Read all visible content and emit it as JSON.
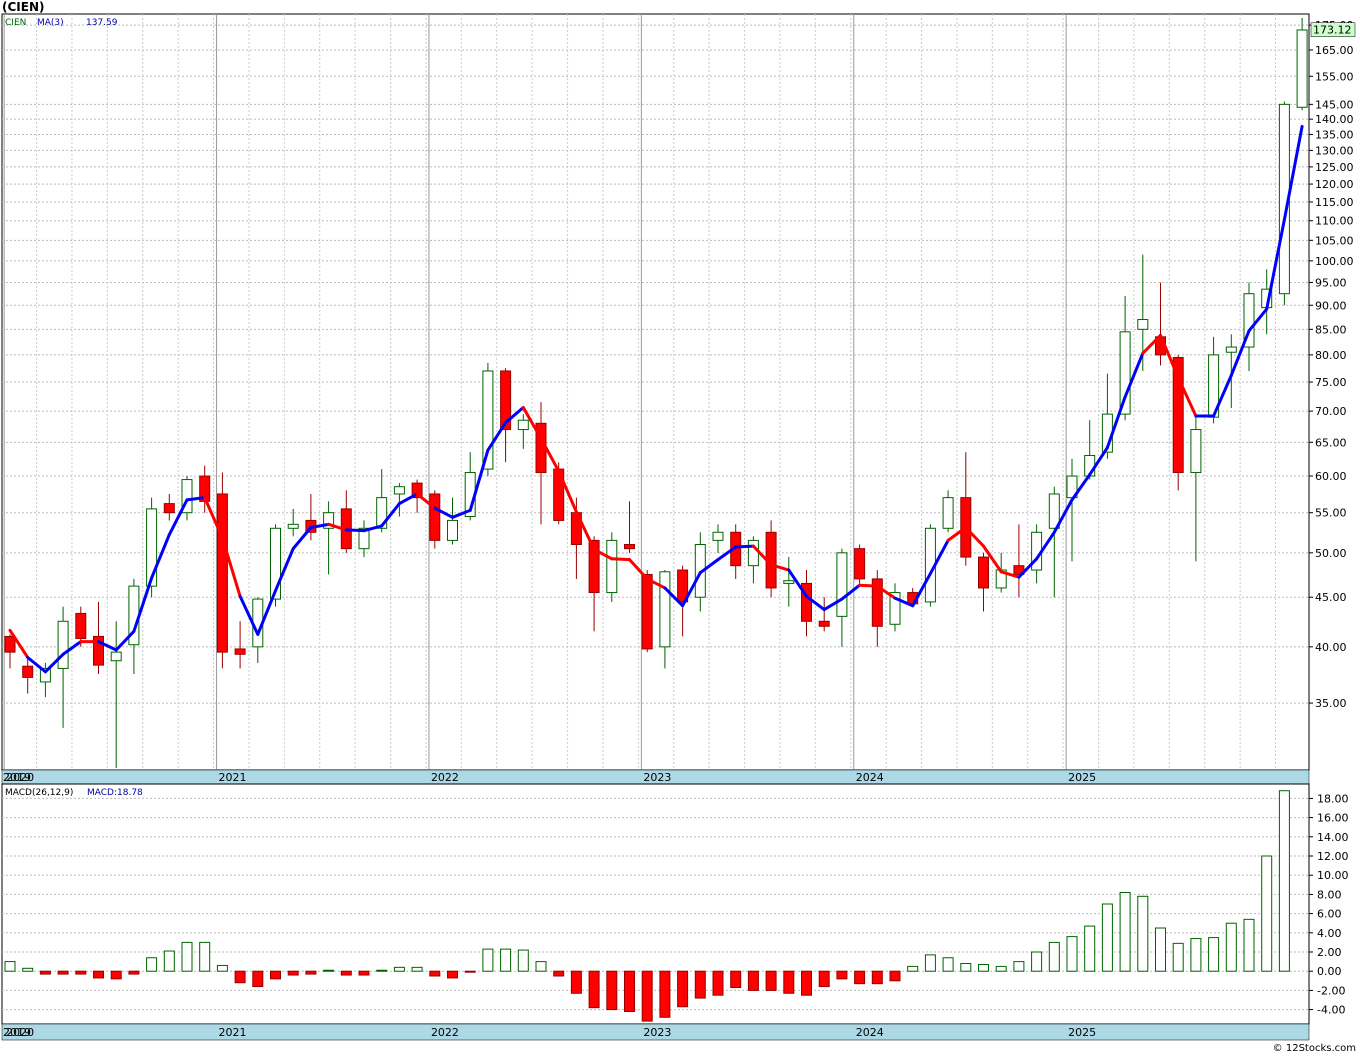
{
  "ticker_title": "(CIEN)",
  "credit": "© 12Stocks.com",
  "colors": {
    "up_fill": "#ffffff",
    "up_stroke": "#006400",
    "down_fill": "#ff0000",
    "down_stroke": "#990000",
    "ma_up": "#0000ff",
    "ma_down": "#ff0000",
    "axis_band": "#add8e6",
    "grid": "#bbbbbb",
    "price_label_bg": "#ccffcc"
  },
  "chart_data": [
    {
      "type": "candlestick",
      "legend": {
        "ticker": "CIEN",
        "ma_label": "MA(3)",
        "ma_value": "137.59"
      },
      "last_price_label": "173.12",
      "y_scale": "log",
      "ylim": [
        30,
        178
      ],
      "y_ticks": [
        "35.00",
        "40.00",
        "45.00",
        "50.00",
        "55.00",
        "60.00",
        "65.00",
        "70.00",
        "75.00",
        "80.00",
        "85.00",
        "90.00",
        "95.00",
        "100.00",
        "105.00",
        "110.00",
        "115.00",
        "120.00",
        "125.00",
        "130.00",
        "135.00",
        "140.00",
        "145.00",
        "155.00",
        "165.00",
        "175.00"
      ],
      "x_labels": [
        "2019",
        "2020",
        "2021",
        "2022",
        "2023",
        "2024",
        "2025"
      ],
      "x_label_months": [
        -1,
        0,
        12,
        24,
        36,
        48,
        60
      ],
      "months_start": "2019-12",
      "candles": [
        [
          41.0,
          41.2,
          38.0,
          39.5
        ],
        [
          38.2,
          39.0,
          35.8,
          37.2
        ],
        [
          36.8,
          38.5,
          35.5,
          38.0
        ],
        [
          38.0,
          44.0,
          33.0,
          42.5
        ],
        [
          43.3,
          44.0,
          40.0,
          40.8
        ],
        [
          41.0,
          44.5,
          37.5,
          38.3
        ],
        [
          38.7,
          42.5,
          30.0,
          39.5
        ],
        [
          40.2,
          47.0,
          37.5,
          46.2
        ],
        [
          46.2,
          57.0,
          45.0,
          55.5
        ],
        [
          56.2,
          57.5,
          54.0,
          55.0
        ],
        [
          55.0,
          60.0,
          54.0,
          59.5
        ],
        [
          60.0,
          61.5,
          55.0,
          56.5
        ],
        [
          57.5,
          60.5,
          38.0,
          39.5
        ],
        [
          39.8,
          42.5,
          38.0,
          39.3
        ],
        [
          40.0,
          45.0,
          38.5,
          44.8
        ],
        [
          44.8,
          53.5,
          44.0,
          53.0
        ],
        [
          53.0,
          55.5,
          52.0,
          53.5
        ],
        [
          54.0,
          57.5,
          51.5,
          52.5
        ],
        [
          53.0,
          56.5,
          47.5,
          55.0
        ],
        [
          55.5,
          58.0,
          50.0,
          50.5
        ],
        [
          50.5,
          54.0,
          49.5,
          53.0
        ],
        [
          53.0,
          61.0,
          52.5,
          57.0
        ],
        [
          57.5,
          59.0,
          54.5,
          58.5
        ],
        [
          59.0,
          59.5,
          55.0,
          57.0
        ],
        [
          57.5,
          58.0,
          50.5,
          51.5
        ],
        [
          51.5,
          57.0,
          51.0,
          54.0
        ],
        [
          54.5,
          63.5,
          54.0,
          60.5
        ],
        [
          61.0,
          78.5,
          60.0,
          77.0
        ],
        [
          77.0,
          77.5,
          62.0,
          67.0
        ],
        [
          67.0,
          69.5,
          64.0,
          68.5
        ],
        [
          68.0,
          71.5,
          53.5,
          60.5
        ],
        [
          61.0,
          62.0,
          53.5,
          54.0
        ],
        [
          55.0,
          57.0,
          47.0,
          51.0
        ],
        [
          51.5,
          52.0,
          41.5,
          45.5
        ],
        [
          45.5,
          52.5,
          44.5,
          51.5
        ],
        [
          51.0,
          56.5,
          50.0,
          50.5
        ],
        [
          47.5,
          48.0,
          39.5,
          39.8
        ],
        [
          40.0,
          48.0,
          38.0,
          47.8
        ],
        [
          48.0,
          48.5,
          41.0,
          44.5
        ],
        [
          45.0,
          52.5,
          43.5,
          51.0
        ],
        [
          51.5,
          53.5,
          50.0,
          52.5
        ],
        [
          52.5,
          53.5,
          47.0,
          48.5
        ],
        [
          48.5,
          52.0,
          46.5,
          51.5
        ],
        [
          52.5,
          54.0,
          45.0,
          46.0
        ],
        [
          46.5,
          49.5,
          44.0,
          46.8
        ],
        [
          46.5,
          48.0,
          41.0,
          42.5
        ],
        [
          42.5,
          45.0,
          41.5,
          42.0
        ],
        [
          43.0,
          50.5,
          40.0,
          50.0
        ],
        [
          50.5,
          51.0,
          46.5,
          47.0
        ],
        [
          47.0,
          48.0,
          40.0,
          42.0
        ],
        [
          42.2,
          46.5,
          41.5,
          45.5
        ],
        [
          45.5,
          46.0,
          44.0,
          44.3
        ],
        [
          44.5,
          53.5,
          44.0,
          53.0
        ],
        [
          53.0,
          58.0,
          52.5,
          57.0
        ],
        [
          57.0,
          63.5,
          48.5,
          49.5
        ],
        [
          49.5,
          50.0,
          43.5,
          46.0
        ],
        [
          46.0,
          50.0,
          45.5,
          48.0
        ],
        [
          48.5,
          53.5,
          45.0,
          47.5
        ],
        [
          48.0,
          53.5,
          46.5,
          52.5
        ],
        [
          53.0,
          58.5,
          45.0,
          57.5
        ],
        [
          57.0,
          62.5,
          49.0,
          60.0
        ],
        [
          60.0,
          68.5,
          59.5,
          63.0
        ],
        [
          63.5,
          76.5,
          62.5,
          69.5
        ],
        [
          69.5,
          92.0,
          68.5,
          84.5
        ],
        [
          85.0,
          101.5,
          77.0,
          87.0
        ],
        [
          83.5,
          95.0,
          78.0,
          80.0
        ],
        [
          79.5,
          80.0,
          58.0,
          60.5
        ],
        [
          60.5,
          69.0,
          49.0,
          67.0
        ],
        [
          69.0,
          83.5,
          68.0,
          80.0
        ],
        [
          80.5,
          84.0,
          70.5,
          81.5
        ],
        [
          81.5,
          95.0,
          77.0,
          92.5
        ],
        [
          89.5,
          98.0,
          84.0,
          93.5
        ],
        [
          92.5,
          146.0,
          90.0,
          145.0
        ],
        [
          144.0,
          178.0,
          143.0,
          173.0
        ]
      ],
      "ma": [
        41.6,
        39.0,
        37.7,
        39.3,
        40.5,
        40.5,
        39.7,
        41.5,
        47.1,
        52.2,
        56.7,
        57.0,
        51.8,
        45.1,
        41.2,
        45.7,
        50.5,
        53.1,
        53.5,
        52.8,
        52.7,
        53.3,
        56.2,
        57.5,
        55.6,
        54.4,
        55.3,
        63.8,
        68.1,
        70.6,
        65.6,
        60.7,
        55.1,
        50.4,
        49.3,
        49.2,
        47.0,
        46.0,
        44.1,
        47.7,
        49.2,
        50.7,
        50.8,
        48.6,
        48.0,
        45.1,
        43.7,
        44.8,
        46.3,
        46.2,
        44.9,
        44.1,
        47.6,
        51.5,
        53.1,
        50.8,
        47.8,
        47.2,
        49.3,
        52.5,
        56.7,
        60.2,
        64.2,
        72.4,
        80.3,
        83.8,
        75.8,
        69.2,
        69.2,
        76.2,
        84.7,
        89.2,
        110.3,
        137.6
      ],
      "ma_direction": [
        "down",
        "down",
        "up",
        "up",
        "up",
        "down",
        "up",
        "up",
        "up",
        "up",
        "up",
        "up",
        "down",
        "down",
        "up",
        "up",
        "up",
        "up",
        "up",
        "down",
        "up",
        "up",
        "up",
        "up",
        "down",
        "up",
        "up",
        "up",
        "up",
        "up",
        "down",
        "down",
        "down",
        "down",
        "down",
        "down",
        "down",
        "down",
        "up",
        "up",
        "up",
        "up",
        "up",
        "down",
        "down",
        "up",
        "up",
        "up",
        "up",
        "down",
        "down",
        "up",
        "up",
        "up",
        "down",
        "down",
        "down",
        "down",
        "up",
        "up",
        "up",
        "up",
        "up",
        "up",
        "up",
        "down",
        "down",
        "down",
        "up",
        "up",
        "up",
        "up",
        "up",
        "up"
      ]
    },
    {
      "type": "bar",
      "legend": {
        "label": "MACD(26,12,9)",
        "value_label": "MACD:18.78"
      },
      "ylim": [
        -5.5,
        19.5
      ],
      "y_ticks": [
        "-4.00",
        "-2.00",
        "0.00",
        "2.00",
        "4.00",
        "6.00",
        "8.00",
        "10.00",
        "12.00",
        "14.00",
        "16.00",
        "18.00"
      ],
      "x_labels": [
        "2019",
        "2020",
        "2021",
        "2022",
        "2023",
        "2024",
        "2025"
      ],
      "values": [
        1.0,
        0.3,
        -0.3,
        -0.3,
        -0.3,
        -0.7,
        -0.8,
        -0.3,
        1.4,
        2.1,
        3.0,
        3.0,
        0.6,
        -1.2,
        -1.6,
        -0.8,
        -0.4,
        -0.3,
        0.1,
        -0.4,
        -0.4,
        0.1,
        0.4,
        0.4,
        -0.5,
        -0.7,
        -0.1,
        2.3,
        2.3,
        2.2,
        1.0,
        -0.5,
        -2.3,
        -3.8,
        -4.0,
        -4.2,
        -5.2,
        -4.8,
        -3.7,
        -2.8,
        -2.5,
        -1.7,
        -2.0,
        -2.0,
        -2.3,
        -2.5,
        -1.6,
        -0.8,
        -1.3,
        -1.3,
        -1.0,
        0.5,
        1.7,
        1.4,
        0.8,
        0.7,
        0.5,
        1.0,
        2.0,
        3.0,
        3.6,
        4.7,
        7.0,
        8.2,
        7.8,
        4.5,
        2.9,
        3.4,
        3.5,
        5.0,
        5.4,
        12.0,
        18.8
      ],
      "value_start_index": 1
    }
  ]
}
